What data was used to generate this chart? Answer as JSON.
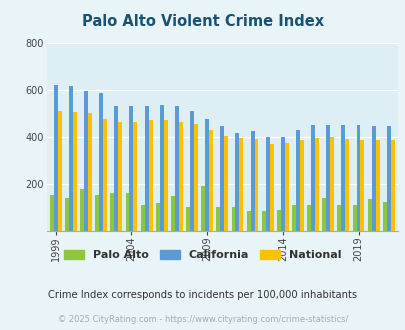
{
  "title": "Palo Alto Violent Crime Index",
  "title_color": "#1a5276",
  "subtitle": "Crime Index corresponds to incidents per 100,000 inhabitants",
  "footer": "© 2025 CityRating.com - https://www.cityrating.com/crime-statistics/",
  "years": [
    1999,
    2000,
    2001,
    2002,
    2003,
    2004,
    2005,
    2006,
    2007,
    2008,
    2009,
    2010,
    2011,
    2012,
    2013,
    2014,
    2015,
    2016,
    2017,
    2018,
    2019,
    2020,
    2021
  ],
  "palo_alto": [
    155,
    140,
    180,
    155,
    160,
    160,
    110,
    120,
    148,
    100,
    190,
    100,
    100,
    85,
    85,
    90,
    110,
    110,
    140,
    110,
    110,
    135,
    125
  ],
  "california": [
    620,
    615,
    595,
    585,
    530,
    530,
    530,
    535,
    530,
    510,
    475,
    445,
    415,
    425,
    400,
    400,
    430,
    450,
    450,
    450,
    450,
    448,
    445
  ],
  "national": [
    510,
    505,
    500,
    475,
    465,
    465,
    470,
    470,
    465,
    455,
    430,
    405,
    395,
    390,
    370,
    375,
    385,
    395,
    400,
    390,
    385,
    385,
    385
  ],
  "palo_alto_color": "#8dc63f",
  "california_color": "#5b9bd5",
  "national_color": "#ffc000",
  "bg_color": "#e8f4f8",
  "plot_bg": "#deeef5",
  "ylim": [
    0,
    800
  ],
  "yticks": [
    0,
    200,
    400,
    600,
    800
  ],
  "bar_width": 0.26,
  "figsize": [
    4.06,
    3.3
  ],
  "dpi": 100,
  "tick_years": [
    1999,
    2004,
    2009,
    2014,
    2019
  ]
}
